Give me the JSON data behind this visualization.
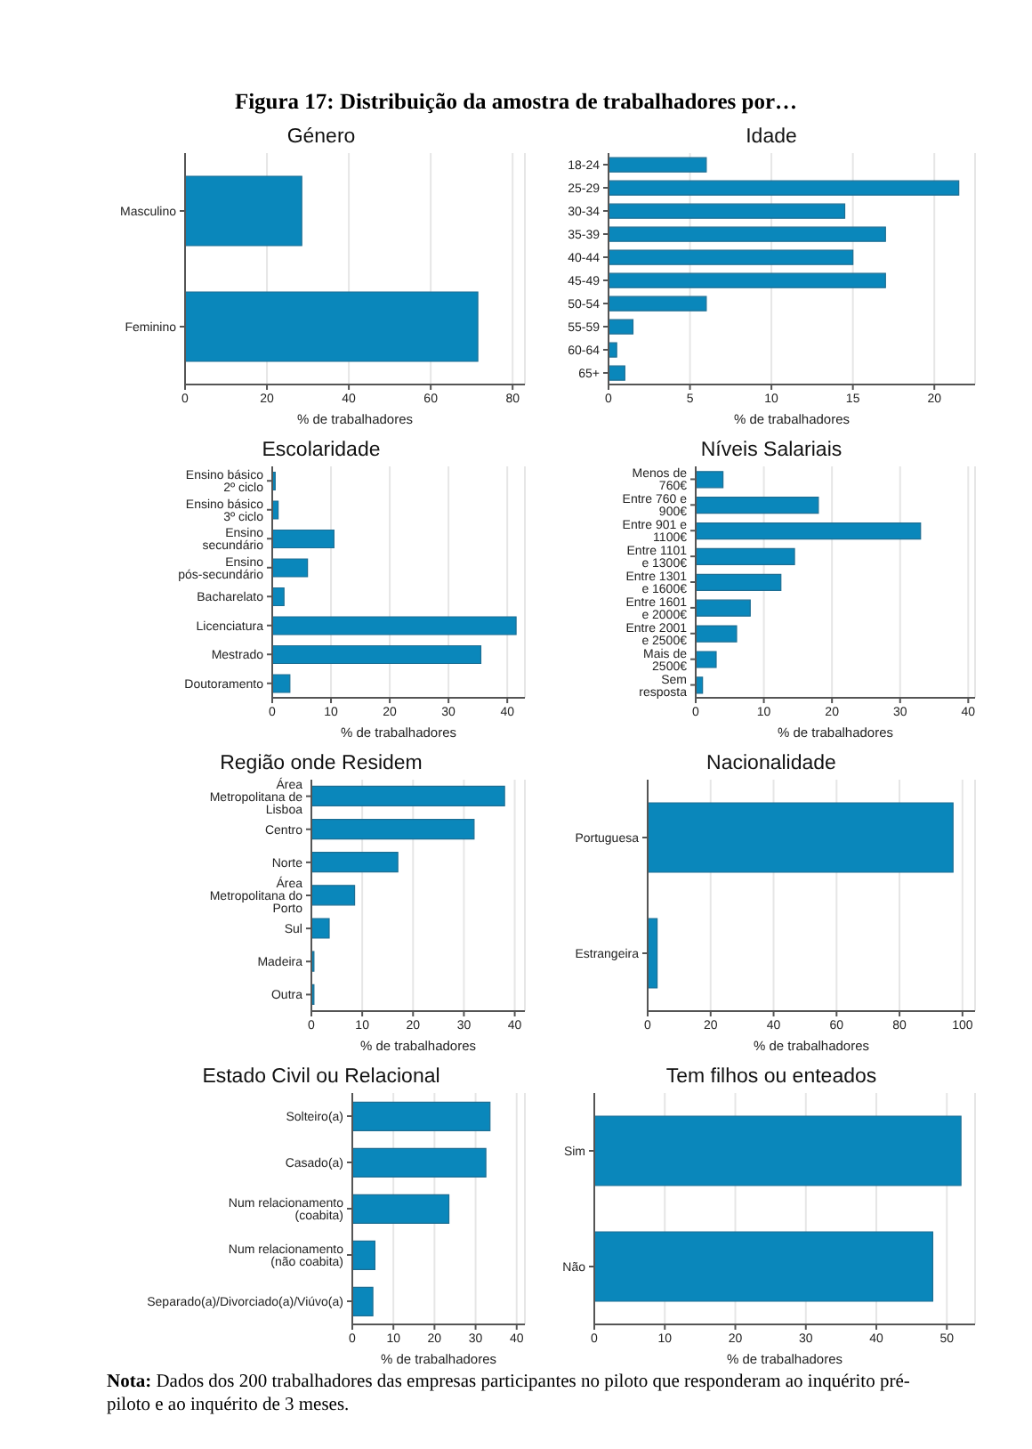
{
  "chart_data": [
    {
      "type": "bar",
      "orientation": "horizontal",
      "title": "Género",
      "annotations": [
        "Figura 17: Distribuição da amostra de trabalhadores por…"
      ],
      "categories": [
        "Masculino",
        "Feminino"
      ],
      "values": [
        28.5,
        71.5
      ],
      "color": "#0a87bb",
      "xlabel": "% de trabalhadores",
      "xlim": [
        0,
        83
      ],
      "xticks": [
        0,
        20,
        40,
        60,
        80
      ],
      "grid": "x"
    },
    {
      "type": "bar",
      "orientation": "horizontal",
      "title": "Idade",
      "categories": [
        "18-24",
        "25-29",
        "30-34",
        "35-39",
        "40-44",
        "45-49",
        "50-54",
        "55-59",
        "60-64",
        "65+"
      ],
      "values": [
        6,
        21.5,
        14.5,
        17,
        15,
        17,
        6,
        1.5,
        0.5,
        1
      ],
      "color": "#0a87bb",
      "xlabel": "% de trabalhadores",
      "xlim": [
        0,
        22.5
      ],
      "xticks": [
        0,
        5,
        10,
        15,
        20
      ],
      "grid": "x"
    },
    {
      "type": "bar",
      "orientation": "horizontal",
      "title": "Escolaridade",
      "categories": [
        "Ensino básico 2º ciclo",
        "Ensino básico 3º ciclo",
        "Ensino secundário",
        "Ensino pós-secundário",
        "Bacharelato",
        "Licenciatura",
        "Mestrado",
        "Doutoramento"
      ],
      "values": [
        0.5,
        1,
        10.5,
        6,
        2,
        41.5,
        35.5,
        3
      ],
      "color": "#0a87bb",
      "xlabel": "% de trabalhadores",
      "xlim": [
        0,
        43
      ],
      "xticks": [
        0,
        10,
        20,
        30,
        40
      ],
      "grid": "x"
    },
    {
      "type": "bar",
      "orientation": "horizontal",
      "title": "Níveis Salariais",
      "categories": [
        "Menos de 760€",
        "Entre 760 e 900€",
        "Entre 901 e 1100€",
        "Entre 1101 e 1300€",
        "Entre 1301 e 1600€",
        "Entre 1601 e 2000€",
        "Entre 2001 e 2500€",
        "Mais de 2500€",
        "Sem resposta"
      ],
      "values": [
        4,
        18,
        33,
        14.5,
        12.5,
        8,
        6,
        3,
        1
      ],
      "color": "#0a87bb",
      "xlabel": "% de trabalhadores",
      "xlim": [
        0,
        41
      ],
      "xticks": [
        0,
        10,
        20,
        30,
        40
      ],
      "grid": "x"
    },
    {
      "type": "bar",
      "orientation": "horizontal",
      "title": "Região onde Residem",
      "categories": [
        "Área Metropolitana de Lisboa",
        "Centro",
        "Norte",
        "Área Metropolitana do Porto",
        "Sul",
        "Madeira",
        "Outra"
      ],
      "values": [
        38,
        32,
        17,
        8.5,
        3.5,
        0.5,
        0.5
      ],
      "color": "#0a87bb",
      "xlabel": "% de trabalhadores",
      "xlim": [
        0,
        42
      ],
      "xticks": [
        0,
        10,
        20,
        30,
        40
      ],
      "grid": "x"
    },
    {
      "type": "bar",
      "orientation": "horizontal",
      "title": "Nacionalidade",
      "categories": [
        "Portuguesa",
        "Estrangeira"
      ],
      "values": [
        97,
        3
      ],
      "color": "#0a87bb",
      "xlabel": "% de trabalhadores",
      "xlim": [
        0,
        104
      ],
      "xticks": [
        0,
        20,
        40,
        60,
        80,
        100
      ],
      "grid": "x"
    },
    {
      "type": "bar",
      "orientation": "horizontal",
      "title": "Estado Civil ou Relacional",
      "categories": [
        "Solteiro(a)",
        "Casado(a)",
        "Num relacionamento (coabita)",
        "Num relacionamento (não coabita)",
        "Separado(a)/Divorciado(a)/Viúvo(a)"
      ],
      "values": [
        33.5,
        32.5,
        23.5,
        5.5,
        5
      ],
      "color": "#0a87bb",
      "xlabel": "% de trabalhadores",
      "xlim": [
        0,
        42
      ],
      "xticks": [
        0,
        10,
        20,
        30,
        40
      ],
      "grid": "x"
    },
    {
      "type": "bar",
      "orientation": "horizontal",
      "title": "Tem filhos ou enteados",
      "annotations": [
        "Nota: Dados dos 200 trabalhadores das empresas participantes no piloto que responderam ao inquérito pré-piloto e ao inquérito de 3 meses."
      ],
      "categories": [
        "Sim",
        "Não"
      ],
      "values": [
        52,
        48
      ],
      "color": "#0a87bb",
      "xlabel": "% de trabalhadores",
      "xlim": [
        0,
        54
      ],
      "xticks": [
        0,
        10,
        20,
        30,
        40,
        50
      ],
      "grid": "x"
    }
  ]
}
